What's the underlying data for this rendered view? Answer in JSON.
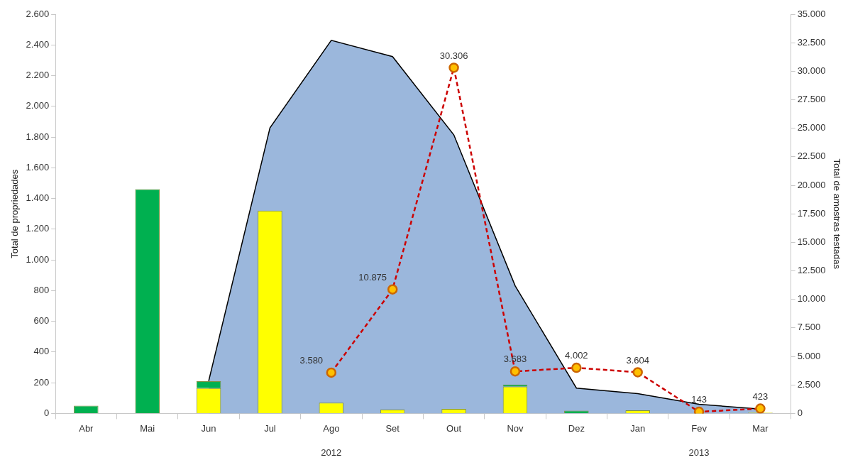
{
  "chart_data": {
    "type": "bar",
    "ylabel": "Total de propriedades",
    "y2label": "Total de amostras testadas",
    "categories": [
      "Abr",
      "Mai",
      "Jun",
      "Jul",
      "Ago",
      "Set",
      "Out",
      "Nov",
      "Dez",
      "Jan",
      "Fev",
      "Mar"
    ],
    "series": [
      {
        "color": "#ffff00",
        "values": [
          0,
          0,
          165,
          1320,
          70,
          25,
          30,
          175,
          0,
          20,
          0,
          5
        ]
      },
      {
        "color": "#00b050",
        "values": [
          50,
          1460,
          45,
          null,
          null,
          null,
          null,
          13,
          18,
          null,
          null,
          null
        ],
        "base": [
          0,
          0,
          165,
          null,
          null,
          null,
          null,
          175,
          0,
          null,
          null,
          null
        ]
      },
      {
        "type": "area",
        "color": "#9bb7dc",
        "values": [
          null,
          null,
          211,
          1860,
          2430,
          2324,
          1814,
          831,
          165,
          129,
          60,
          28
        ]
      },
      {
        "type": "line",
        "axis": "y2",
        "color": "#cc0000",
        "marker": "circle",
        "line_style": "dashed",
        "values": [
          null,
          null,
          null,
          null,
          3580,
          10875,
          30306,
          3683,
          4002,
          3604,
          143,
          423
        ],
        "value_labels": [
          null,
          null,
          null,
          null,
          "3.580",
          "10.875",
          "30.306",
          "3.683",
          "4.002",
          "3.604",
          "143",
          "423"
        ]
      }
    ],
    "ylim": [
      0,
      2600
    ],
    "yticks": [
      0,
      200,
      400,
      600,
      800,
      {
        "value": 1000,
        "label": "1.000"
      },
      {
        "value": 1200,
        "label": "1.200"
      },
      {
        "value": 1400,
        "label": "1.400"
      },
      {
        "value": 1600,
        "label": "1.600"
      },
      {
        "value": 1800,
        "label": "1.800"
      },
      {
        "value": 2000,
        "label": "2.000"
      },
      {
        "value": 2200,
        "label": "2.200"
      },
      {
        "value": 2400,
        "label": "2.400"
      },
      {
        "value": 2600,
        "label": "2.600"
      }
    ],
    "y2lim": [
      0,
      35000
    ],
    "y2ticks": [
      0,
      {
        "value": 2500,
        "label": "2.500"
      },
      {
        "value": 5000,
        "label": "5.000"
      },
      {
        "value": 7500,
        "label": "7.500"
      },
      {
        "value": 10000,
        "label": "10.000"
      },
      {
        "value": 12500,
        "label": "12.500"
      },
      {
        "value": 15000,
        "label": "15.000"
      },
      {
        "value": 17500,
        "label": "17.500"
      },
      {
        "value": 20000,
        "label": "20.000"
      },
      {
        "value": 22500,
        "label": "22.500"
      },
      {
        "value": 25000,
        "label": "25.000"
      },
      {
        "value": 27500,
        "label": "27.500"
      },
      {
        "value": 30000,
        "label": "30.000"
      },
      {
        "value": 32500,
        "label": "32.500"
      },
      {
        "value": 35000,
        "label": "35.000"
      }
    ],
    "grid": false,
    "legend": false,
    "annotations": [
      "2012",
      "2013"
    ]
  }
}
